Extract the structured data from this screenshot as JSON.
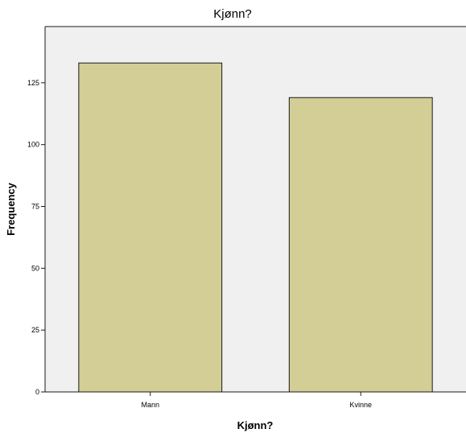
{
  "chart_data": {
    "type": "bar",
    "title": "Kjønn?",
    "xlabel": "Kjønn?",
    "ylabel": "Frequency",
    "categories": [
      "Mann",
      "Kvinne"
    ],
    "values": [
      133,
      119
    ],
    "ylim": [
      0,
      150
    ],
    "yticks": [
      0,
      25,
      50,
      75,
      100,
      125
    ],
    "grid": false,
    "colors": {
      "bar_fill": "#d3cd96",
      "bar_stroke": "#1a1a1a",
      "plot_background": "#f0f0f0",
      "frame": "#1a1a1a"
    }
  }
}
